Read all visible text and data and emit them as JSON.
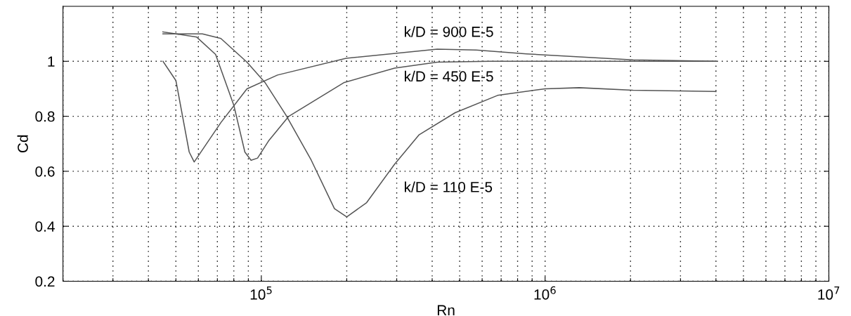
{
  "chart_data": {
    "type": "line",
    "xlabel": "Rn",
    "ylabel": "Cd",
    "log": "x",
    "grid": true,
    "marker": "none",
    "line_style": "solid",
    "xlim": [
      20000,
      10000000
    ],
    "ylim": [
      0.2,
      1.2
    ],
    "xticks": [
      {
        "value": 20000,
        "label": null
      },
      {
        "value": 30000,
        "label": null
      },
      {
        "value": 40000,
        "label": null
      },
      {
        "value": 50000,
        "label": null
      },
      {
        "value": 60000,
        "label": null
      },
      {
        "value": 70000,
        "label": null
      },
      {
        "value": 80000,
        "label": null
      },
      {
        "value": 90000,
        "label": null
      },
      {
        "value": 100000,
        "label": "10$^{5}$"
      },
      {
        "value": 200000,
        "label": null
      },
      {
        "value": 300000,
        "label": null
      },
      {
        "value": 400000,
        "label": null
      },
      {
        "value": 500000,
        "label": null
      },
      {
        "value": 600000,
        "label": null
      },
      {
        "value": 700000,
        "label": null
      },
      {
        "value": 800000,
        "label": null
      },
      {
        "value": 900000,
        "label": null
      },
      {
        "value": 1000000,
        "label": "10$^{6}$"
      },
      {
        "value": 2000000,
        "label": null
      },
      {
        "value": 3000000,
        "label": null
      },
      {
        "value": 4000000,
        "label": null
      },
      {
        "value": 5000000,
        "label": null
      },
      {
        "value": 6000000,
        "label": null
      },
      {
        "value": 7000000,
        "label": null
      },
      {
        "value": 8000000,
        "label": null
      },
      {
        "value": 9000000,
        "label": null
      },
      {
        "value": 10000000,
        "label": "10$^{7}$"
      }
    ],
    "yticks": [
      0.2,
      0.4,
      0.6,
      0.8,
      1
    ],
    "series": [
      {
        "name": "k/D = 900 E-5",
        "color": "#555555",
        "x": [
          45000,
          50000,
          55700,
          58000,
          72000,
          89000,
          114000,
          199000,
          417000,
          572000,
          860000,
          2040000,
          4000000
        ],
        "values": [
          1.0,
          0.93,
          0.67,
          0.634,
          0.777,
          0.9,
          0.95,
          1.011,
          1.044,
          1.041,
          1.027,
          1.005,
          1.0
        ]
      },
      {
        "name": "k/D = 450 E-5",
        "color": "#555555",
        "x": [
          45000,
          59200,
          69000,
          80000,
          87500,
          92000,
          97000,
          106000,
          125000,
          196000,
          295000,
          417000,
          640000,
          4000000
        ],
        "values": [
          1.107,
          1.088,
          1.025,
          0.84,
          0.67,
          0.64,
          0.648,
          0.71,
          0.8,
          0.923,
          0.975,
          0.997,
          1.0,
          1.0
        ]
      },
      {
        "name": "k/D = 110 E-5",
        "color": "#555555",
        "x": [
          45000,
          62000,
          72000,
          89000,
          103000,
          122000,
          150000,
          181000,
          200000,
          235000,
          295000,
          360000,
          482000,
          680000,
          1000000,
          1320000,
          2040000,
          4000000
        ],
        "values": [
          1.1,
          1.1,
          1.083,
          0.997,
          0.923,
          0.805,
          0.64,
          0.464,
          0.434,
          0.486,
          0.626,
          0.733,
          0.813,
          0.876,
          0.9,
          0.904,
          0.895,
          0.89
        ]
      }
    ]
  }
}
